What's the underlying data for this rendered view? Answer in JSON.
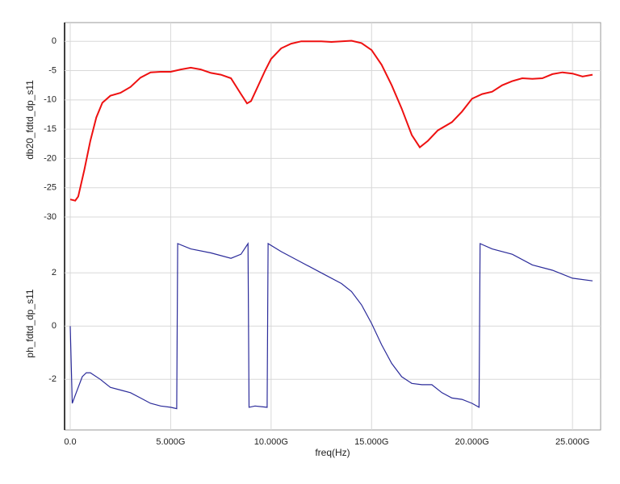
{
  "chart_data": [
    {
      "type": "line",
      "ylabel": "db20_fdtd_dp_s11",
      "color": "#ee1111",
      "x": [
        0,
        0.25,
        0.4,
        0.7,
        1.0,
        1.3,
        1.6,
        2.0,
        2.5,
        3.0,
        3.5,
        4.0,
        4.5,
        5.0,
        5.5,
        6.0,
        6.5,
        7.0,
        7.5,
        8.0,
        8.5,
        8.8,
        9.0,
        9.3,
        9.7,
        10.0,
        10.5,
        11.0,
        11.5,
        12.0,
        12.5,
        13.0,
        13.5,
        14.0,
        14.5,
        15.0,
        15.5,
        16.0,
        16.5,
        17.0,
        17.4,
        17.8,
        18.3,
        19.0,
        19.5,
        20.0,
        20.5,
        21.0,
        21.5,
        22.0,
        22.5,
        23.0,
        23.5,
        24.0,
        24.5,
        25.0,
        25.5,
        26.0
      ],
      "values": [
        -27,
        -27.2,
        -26.5,
        -22,
        -17,
        -13,
        -10.5,
        -9.3,
        -8.8,
        -7.8,
        -6.2,
        -5.3,
        -5.2,
        -5.2,
        -4.8,
        -4.5,
        -4.8,
        -5.4,
        -5.7,
        -6.3,
        -9.0,
        -10.6,
        -10.2,
        -8,
        -5,
        -3,
        -1.2,
        -0.4,
        0,
        0,
        0,
        -0.1,
        0,
        0.1,
        -0.3,
        -1.5,
        -4,
        -7.5,
        -11.5,
        -16,
        -18.1,
        -17,
        -15.2,
        -13.8,
        -12,
        -9.8,
        -9,
        -8.6,
        -7.5,
        -6.8,
        -6.3,
        -6.4,
        -6.3,
        -5.6,
        -5.3,
        -5.5,
        -6,
        -5.7
      ],
      "xlim": [
        -0.28,
        26.4
      ],
      "xticks": [
        0,
        5,
        10,
        15,
        20,
        25
      ],
      "ylim": [
        -30,
        3.2
      ],
      "yticks": [
        -30,
        -25,
        -20,
        -15,
        -10,
        -5,
        0
      ],
      "grid": true
    },
    {
      "type": "line",
      "ylabel": "ph_fdtd_dp_s11",
      "xlabel": "freq(Hz)",
      "color": "#2b2b9a",
      "x": [
        0,
        0.1,
        0.3,
        0.6,
        0.8,
        1.0,
        1.5,
        2.0,
        2.5,
        3.0,
        3.5,
        4.0,
        4.5,
        5.0,
        5.3,
        5.35,
        6.0,
        7.0,
        8.0,
        8.5,
        8.85,
        8.9,
        9.2,
        9.8,
        9.85,
        10.5,
        11.5,
        12.5,
        13.5,
        14.0,
        14.5,
        15.0,
        15.5,
        16.0,
        16.5,
        17.0,
        17.5,
        18.0,
        18.5,
        19.0,
        19.5,
        20.0,
        20.35,
        20.4,
        21.0,
        22.0,
        23.0,
        24.0,
        25.0,
        26.0
      ],
      "values": [
        0,
        -2.9,
        -2.5,
        -1.9,
        -1.75,
        -1.75,
        -2.0,
        -2.3,
        -2.4,
        -2.5,
        -2.7,
        -2.9,
        -3.0,
        -3.05,
        -3.1,
        3.1,
        2.9,
        2.75,
        2.55,
        2.7,
        3.1,
        -3.05,
        -3.0,
        -3.05,
        3.1,
        2.8,
        2.4,
        2.0,
        1.6,
        1.3,
        0.8,
        0.1,
        -0.7,
        -1.4,
        -1.9,
        -2.15,
        -2.2,
        -2.2,
        -2.5,
        -2.7,
        -2.75,
        -2.9,
        -3.05,
        3.1,
        2.9,
        2.7,
        2.3,
        2.1,
        1.8,
        1.7
      ],
      "xlim": [
        -0.28,
        26.4
      ],
      "xticks": [
        {
          "value": 0,
          "label": "0.0"
        },
        {
          "value": 5,
          "label": "5.000G"
        },
        {
          "value": 10,
          "label": "10.000G"
        },
        {
          "value": 15,
          "label": "15.000G"
        },
        {
          "value": 20,
          "label": "20.000G"
        },
        {
          "value": 25,
          "label": "25.000G"
        }
      ],
      "ylim": [
        -3.9,
        4.1
      ],
      "yticks": [
        -2,
        0,
        2
      ],
      "grid": true
    }
  ]
}
